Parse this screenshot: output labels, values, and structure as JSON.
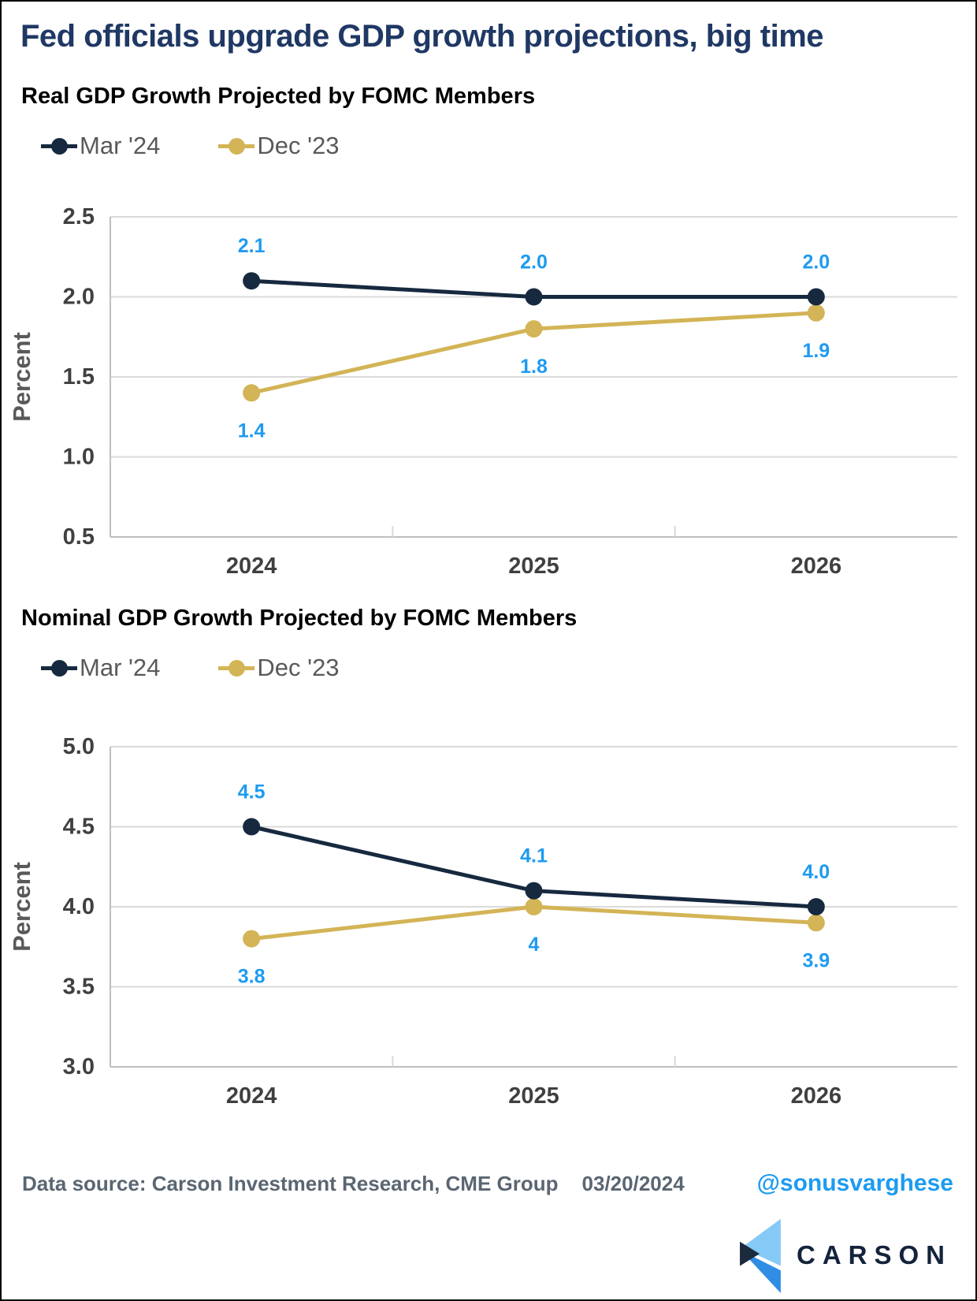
{
  "page": {
    "title": "Fed officials upgrade GDP growth projections, big time"
  },
  "colors": {
    "title": "#1F3864",
    "subtitle": "#000000",
    "legend_text": "#595959",
    "axis_text": "#404040",
    "axis_label_text": "#595959",
    "axis_line": "#BFBFBF",
    "gridline": "#DADADA",
    "data_label": "#1E9BF0",
    "series_mar24": "#16293F",
    "series_dec23": "#D3B456",
    "footer_text": "#5A6672",
    "handle": "#1D9BF0",
    "logo_light": "#85C9F6",
    "logo_mid": "#2F8DE4",
    "logo_dark": "#1B2B3D",
    "logo_wordmark": "#14233C"
  },
  "chart_data": [
    {
      "type": "line",
      "title": "Real GDP Growth Projected by FOMC Members",
      "xlabel": "",
      "ylabel": "Percent",
      "categories": [
        "2024",
        "2025",
        "2026"
      ],
      "ylim": [
        0.5,
        2.5
      ],
      "yticks": [
        "0.5",
        "1.0",
        "1.5",
        "2.0",
        "2.5"
      ],
      "grid": true,
      "legend_position": "top-left",
      "series": [
        {
          "name": "Mar '24",
          "color": "#16293F",
          "values": [
            2.1,
            2.0,
            2.0
          ],
          "point_labels": [
            "2.1",
            "2.0",
            "2.0"
          ],
          "label_side": "above"
        },
        {
          "name": "Dec '23",
          "color": "#D3B456",
          "values": [
            1.4,
            1.8,
            1.9
          ],
          "point_labels": [
            "1.4",
            "1.8",
            "1.9"
          ],
          "label_side": "below"
        }
      ]
    },
    {
      "type": "line",
      "title": "Nominal GDP Growth Projected by FOMC Members",
      "xlabel": "",
      "ylabel": "Percent",
      "categories": [
        "2024",
        "2025",
        "2026"
      ],
      "ylim": [
        3.0,
        5.0
      ],
      "yticks": [
        "3.0",
        "3.5",
        "4.0",
        "4.5",
        "5.0"
      ],
      "grid": true,
      "legend_position": "top-left",
      "series": [
        {
          "name": "Mar '24",
          "color": "#16293F",
          "values": [
            4.5,
            4.1,
            4.0
          ],
          "point_labels": [
            "4.5",
            "4.1",
            "4.0"
          ],
          "label_side": "above"
        },
        {
          "name": "Dec '23",
          "color": "#D3B456",
          "values": [
            3.8,
            4.0,
            3.9
          ],
          "point_labels": [
            "3.8",
            "4",
            "3.9"
          ],
          "label_side": "below"
        }
      ]
    }
  ],
  "footer": {
    "data_source": "Data source: Carson Investment Research, CME Group",
    "date": "03/20/2024",
    "handle": "@sonusvarghese"
  },
  "logo": {
    "wordmark": "CARSON"
  }
}
